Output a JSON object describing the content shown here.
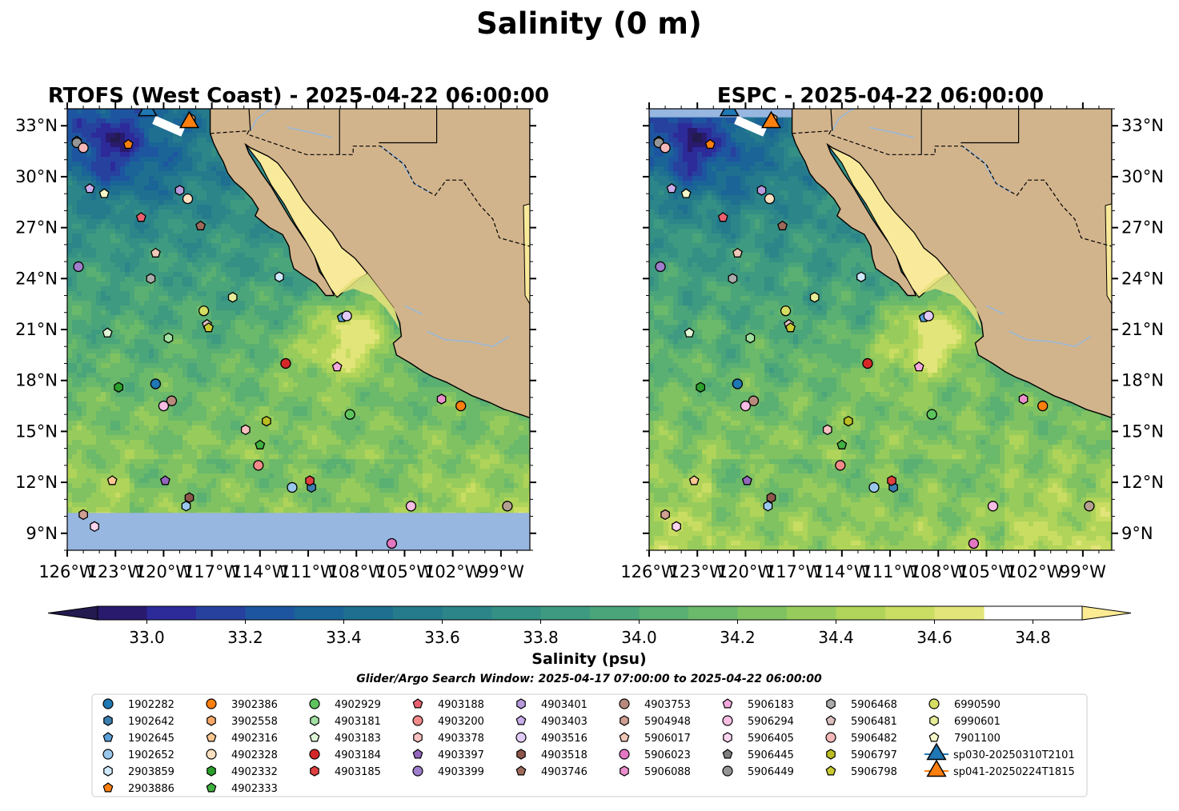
{
  "figure": {
    "suptitle": "Salinity (0 m)",
    "search_window": "Glider/Argo Search Window: 2025-04-17 07:00:00 to 2025-04-22 06:00:00"
  },
  "chart_data": [
    {
      "type": "heatmap",
      "title": "RTOFS (West Coast) - 2025-04-22 06:00:00",
      "x_ticks": [
        "126°W",
        "123°W",
        "120°W",
        "117°W",
        "114°W",
        "111°W",
        "108°W",
        "105°W",
        "102°W",
        "99°W"
      ],
      "y_ticks": [
        "9°N",
        "12°N",
        "15°N",
        "18°N",
        "21°N",
        "24°N",
        "27°N",
        "30°N",
        "33°N"
      ],
      "xlim": [
        -126,
        -97.2
      ],
      "ylim": [
        8,
        34
      ],
      "tick_side": "left",
      "no_data_below_lat": 10.2
    },
    {
      "type": "heatmap",
      "title": "ESPC - 2025-04-22 06:00:00",
      "x_ticks": [
        "126°W",
        "123°W",
        "120°W",
        "117°W",
        "114°W",
        "111°W",
        "108°W",
        "105°W",
        "102°W",
        "99°W"
      ],
      "y_ticks": [
        "9°N",
        "12°N",
        "15°N",
        "18°N",
        "21°N",
        "24°N",
        "27°N",
        "30°N",
        "33°N"
      ],
      "xlim": [
        -126,
        -97.2
      ],
      "ylim": [
        8,
        34
      ],
      "tick_side": "right",
      "no_data_above_lat": 33.5
    }
  ],
  "colorbar": {
    "label": "Salinity (psu)",
    "min": 32.9,
    "max": 34.9,
    "step": 0.1,
    "tick_values": [
      33.0,
      33.2,
      33.4,
      33.6,
      33.8,
      34.0,
      34.2,
      34.4,
      34.6,
      34.8
    ],
    "tick_labels": [
      "33.0",
      "33.2",
      "33.4",
      "33.6",
      "33.8",
      "34.0",
      "34.2",
      "34.4",
      "34.6",
      "34.8"
    ],
    "extend": "both",
    "colors": [
      "#2a1a6e",
      "#2d2a9a",
      "#27419f",
      "#1e55a0",
      "#1a6497",
      "#1f7090",
      "#257a8c",
      "#2b8589",
      "#348f85",
      "#3e9a80",
      "#4ba57a",
      "#5aaf72",
      "#6bb96a",
      "#80c262",
      "#97cc5c",
      "#afd459",
      "#c9dd63",
      "#e2e57a"
    ],
    "under_color": "#231a4f",
    "over_color": "#fdeb94"
  },
  "colors": {
    "land": "#d2b48c",
    "ocean_nodata": "#97b6e0",
    "river": "#9ab8d8",
    "gulf_high_salinity": "#f9e99a"
  },
  "platforms": [
    {
      "id": "1902282",
      "marker": "circle",
      "color": "#1f77b4",
      "lat": 17.8,
      "lon": -120.5
    },
    {
      "id": "1902642",
      "marker": "hexagon",
      "color": "#3a7fb0",
      "lat": 11.7,
      "lon": -110.8
    },
    {
      "id": "1902645",
      "marker": "pentagon",
      "color": "#5aa0d8",
      "lat": 21.7,
      "lon": -108.9
    },
    {
      "id": "1902652",
      "marker": "circle",
      "color": "#9ac8ec",
      "lat": 11.7,
      "lon": -112
    },
    {
      "id": "2903859",
      "marker": "hexagon",
      "color": "#cfe8fb",
      "lat": 24.1,
      "lon": -112.8
    },
    {
      "id": "2903886",
      "marker": "pentagon",
      "color": "#ff7f0e",
      "lat": 31.9,
      "lon": -122.2
    },
    {
      "id": "3902386",
      "marker": "circle",
      "color": "#ff7f0e",
      "lat": 16.5,
      "lon": -101.5
    },
    {
      "id": "3902558",
      "marker": "hexagon",
      "color": "#f5a868",
      "lat": 33.4,
      "lon": -118.3
    },
    {
      "id": "4902316",
      "marker": "pentagon",
      "color": "#fcc892",
      "lat": 12.1,
      "lon": -123.2
    },
    {
      "id": "4902328",
      "marker": "circle",
      "color": "#fde0c0",
      "lat": 28.7,
      "lon": -118.5
    },
    {
      "id": "4902332",
      "marker": "hexagon",
      "color": "#2ca02c",
      "lat": 17.6,
      "lon": -122.8
    },
    {
      "id": "4902333",
      "marker": "pentagon",
      "color": "#40b040",
      "lat": 14.2,
      "lon": -114
    },
    {
      "id": "4902929",
      "marker": "circle",
      "color": "#5ec45e",
      "lat": 16,
      "lon": -108.4
    },
    {
      "id": "4903181",
      "marker": "hexagon",
      "color": "#a2e0a2",
      "lat": 20.5,
      "lon": -119.7
    },
    {
      "id": "4903183",
      "marker": "pentagon",
      "color": "#dff5d6",
      "lat": 20.8,
      "lon": -123.5
    },
    {
      "id": "4903184",
      "marker": "circle",
      "color": "#d62728",
      "lat": 19,
      "lon": -112.4
    },
    {
      "id": "4903185",
      "marker": "hexagon",
      "color": "#e04040",
      "lat": 12.1,
      "lon": -110.9
    },
    {
      "id": "4903188",
      "marker": "pentagon",
      "color": "#ea6070",
      "lat": 27.6,
      "lon": -121.4
    },
    {
      "id": "4903200",
      "marker": "circle",
      "color": "#f38a8a",
      "lat": 13,
      "lon": -114.1
    },
    {
      "id": "4903378",
      "marker": "hexagon",
      "color": "#f8c0c0",
      "lat": 15.1,
      "lon": -114.9
    },
    {
      "id": "4903397",
      "marker": "pentagon",
      "color": "#9467bd",
      "lat": 12.1,
      "lon": -119.9
    },
    {
      "id": "4903399",
      "marker": "circle",
      "color": "#9f7ecb",
      "lat": 24.7,
      "lon": -125.3
    },
    {
      "id": "4903401",
      "marker": "hexagon",
      "color": "#b799dc",
      "lat": 29.2,
      "lon": -119
    },
    {
      "id": "4903403",
      "marker": "pentagon",
      "color": "#caaeec",
      "lat": 29.3,
      "lon": -124.6
    },
    {
      "id": "4903516",
      "marker": "circle",
      "color": "#e2ccf7",
      "lat": 21.8,
      "lon": -108.6
    },
    {
      "id": "4903518",
      "marker": "hexagon",
      "color": "#8c564b",
      "lat": 11.1,
      "lon": -118.4
    },
    {
      "id": "4903746",
      "marker": "pentagon",
      "color": "#9e6a5c",
      "lat": 27.1,
      "lon": -117.7
    },
    {
      "id": "4903753",
      "marker": "circle",
      "color": "#b88a7c",
      "lat": 16.8,
      "lon": -119.5
    },
    {
      "id": "5904948",
      "marker": "hexagon",
      "color": "#cf9f92",
      "lat": 10.1,
      "lon": -125
    },
    {
      "id": "5906017",
      "marker": "pentagon",
      "color": "#f0c8b8",
      "lat": 25.5,
      "lon": -120.5
    },
    {
      "id": "5906023",
      "marker": "circle",
      "color": "#e377c2",
      "lat": 8.4,
      "lon": -105.8
    },
    {
      "id": "5906088",
      "marker": "hexagon",
      "color": "#ea8fcc",
      "lat": 16.9,
      "lon": -102.7
    },
    {
      "id": "5906183",
      "marker": "pentagon",
      "color": "#f3a9dc",
      "lat": 18.8,
      "lon": -109.2
    },
    {
      "id": "5906294",
      "marker": "circle",
      "color": "#f7bde3",
      "lat": 16.5,
      "lon": -120
    },
    {
      "id": "5906405",
      "marker": "hexagon",
      "color": "#fbd5ef",
      "lat": 9.4,
      "lon": -124.3
    },
    {
      "id": "5906445",
      "marker": "pentagon",
      "color": "#7f7f7f",
      "lat": 32.1,
      "lon": -125.4
    },
    {
      "id": "5906449",
      "marker": "circle",
      "color": "#959595",
      "lat": 32,
      "lon": -125.4
    },
    {
      "id": "5906468",
      "marker": "hexagon",
      "color": "#ababab",
      "lat": 24,
      "lon": -120.8
    },
    {
      "id": "5906481",
      "marker": "pentagon",
      "color": "#dcc0c0",
      "lat": 21.3,
      "lon": -117.3
    },
    {
      "id": "5906482",
      "marker": "circle",
      "color": "#f4b8b8",
      "lat": 31.7,
      "lon": -125
    },
    {
      "id": "5906797",
      "marker": "hexagon",
      "color": "#bcbd22",
      "lat": 15.6,
      "lon": -113.6
    },
    {
      "id": "5906798",
      "marker": "pentagon",
      "color": "#c9cb32",
      "lat": 21.1,
      "lon": -117.2
    },
    {
      "id": "6990590",
      "marker": "circle",
      "color": "#d4de62",
      "lat": 22.1,
      "lon": -117.5
    },
    {
      "id": "6990601",
      "marker": "hexagon",
      "color": "#e6ec98",
      "lat": 22.9,
      "lon": -115.7
    },
    {
      "id": "7901100",
      "marker": "pentagon",
      "color": "#f5f7c8",
      "lat": 29,
      "lon": -123.7
    }
  ],
  "extra_points": [
    {
      "marker": "circle",
      "color": "#b3a090",
      "lat": 10.6,
      "lon": -98.6
    },
    {
      "marker": "circle",
      "color": "#f7bde3",
      "lat": 10.6,
      "lon": -104.6
    },
    {
      "marker": "hexagon",
      "color": "#9ac8ec",
      "lat": 10.6,
      "lon": -118.6
    }
  ],
  "gliders": [
    {
      "id": "sp030-20250310T2101",
      "marker": "triangle",
      "color": "#1f77b4",
      "lat": 33.9,
      "lon": -121
    },
    {
      "id": "sp041-20250224T1815",
      "marker": "triangle",
      "color": "#ff7f0e",
      "lat": 33.2,
      "lon": -118.4
    }
  ]
}
